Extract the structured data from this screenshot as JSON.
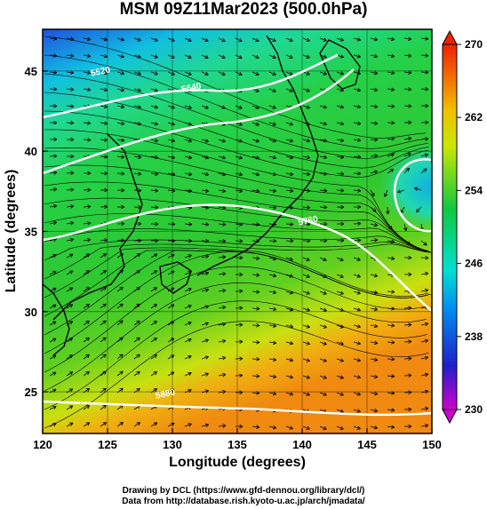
{
  "title": "MSM 09Z11Mar2023 (500.0hPa)",
  "x_axis": {
    "label": "Longitude (degrees)",
    "ticks": [
      "120",
      "125",
      "130",
      "135",
      "140",
      "145",
      "150"
    ]
  },
  "y_axis": {
    "label": "Latitude  (degrees)",
    "ticks": [
      "25",
      "30",
      "35",
      "40",
      "45"
    ]
  },
  "colorbar": {
    "ticks": [
      "230",
      "238",
      "246",
      "254",
      "262",
      "270"
    ],
    "min": 230,
    "max": 270
  },
  "contours": [
    {
      "label": "5520",
      "lon": 124.5,
      "lat": 44.8
    },
    {
      "label": "5640",
      "lon": 131.5,
      "lat": 43.8
    },
    {
      "label": "5760",
      "lon": 140.5,
      "lat": 35.5
    },
    {
      "label": "5880",
      "lon": 129.5,
      "lat": 24.7
    }
  ],
  "credits": {
    "line1": "Drawing by DCL (https://www.gfd-dennou.org/library/dcl/)",
    "line2": "Data from http://database.rish.kyoto-u.ac.jp/arch/jmadata/"
  },
  "colors": {
    "cold": "#1a3bd8",
    "mid": "#22c84a",
    "warm": "#f0a020"
  }
}
